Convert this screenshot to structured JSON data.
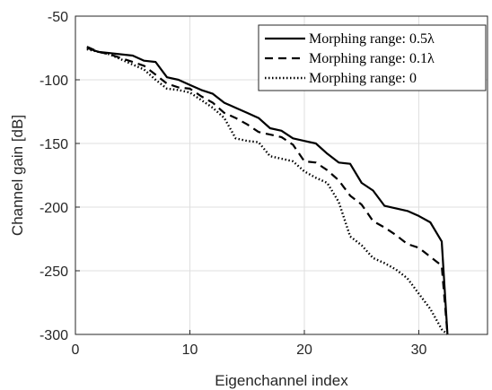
{
  "chart_data": {
    "type": "line",
    "title": "",
    "xlabel": "Eigenchannel index",
    "ylabel": "Channel gain [dB]",
    "xlim": [
      0,
      36
    ],
    "ylim": [
      -300,
      -50
    ],
    "xticks": [
      0,
      10,
      20,
      30
    ],
    "yticks": [
      -300,
      -250,
      -200,
      -150,
      -100,
      -50
    ],
    "grid": true,
    "legend_position": "top-right",
    "series": [
      {
        "name": "Morphing range: 0.5λ",
        "style": "solid",
        "x": [
          1,
          2,
          3,
          4,
          5,
          6,
          7,
          8,
          9,
          10,
          11,
          12,
          13,
          14,
          15,
          16,
          17,
          18,
          19,
          20,
          21,
          22,
          23,
          24,
          25,
          26,
          27,
          28,
          29,
          30,
          31,
          32,
          32.5
        ],
        "values": [
          -75,
          -78,
          -79,
          -80,
          -81,
          -85,
          -86,
          -98,
          -100,
          -104,
          -108,
          -111,
          -118,
          -122,
          -126,
          -130,
          -138,
          -140,
          -146,
          -148,
          -150,
          -158,
          -165,
          -166,
          -181,
          -187,
          -199,
          -201,
          -203,
          -207,
          -212,
          -227,
          -300
        ]
      },
      {
        "name": "Morphing range: 0.1λ",
        "style": "dashed",
        "x": [
          1,
          2,
          3,
          4,
          5,
          6,
          7,
          8,
          9,
          10,
          11,
          12,
          13,
          14,
          15,
          16,
          17,
          18,
          19,
          20,
          21,
          22,
          23,
          24,
          25,
          26,
          27,
          28,
          29,
          30,
          31,
          32,
          32.5
        ],
        "values": [
          -74,
          -78,
          -80,
          -83,
          -86,
          -89,
          -96,
          -103,
          -106,
          -107,
          -113,
          -118,
          -126,
          -130,
          -135,
          -141,
          -143,
          -145,
          -151,
          -164,
          -165,
          -171,
          -179,
          -191,
          -198,
          -211,
          -216,
          -222,
          -229,
          -232,
          -239,
          -246,
          -300
        ]
      },
      {
        "name": "Morphing range: 0",
        "style": "dotted",
        "x": [
          1,
          2,
          3,
          4,
          5,
          6,
          7,
          8,
          9,
          10,
          11,
          12,
          13,
          14,
          15,
          16,
          17,
          18,
          19,
          20,
          21,
          22,
          23,
          24,
          25,
          26,
          27,
          28,
          29,
          30,
          31,
          32,
          32.5
        ],
        "values": [
          -76,
          -78,
          -80,
          -84,
          -88,
          -92,
          -100,
          -107,
          -108,
          -110,
          -116,
          -122,
          -130,
          -146,
          -148,
          -149,
          -160,
          -162,
          -164,
          -172,
          -177,
          -181,
          -196,
          -223,
          -230,
          -240,
          -244,
          -249,
          -256,
          -268,
          -280,
          -296,
          -300
        ]
      }
    ]
  }
}
